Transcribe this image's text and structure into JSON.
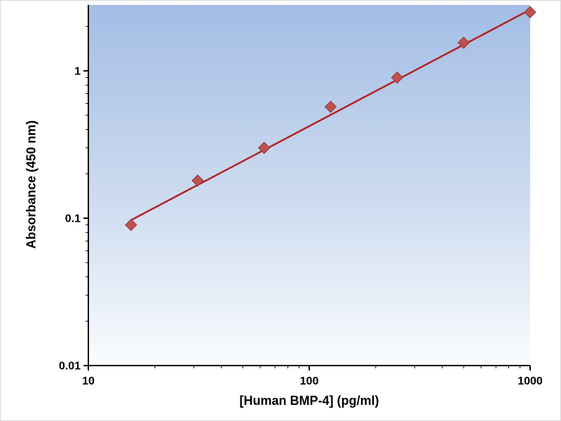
{
  "chart_data": {
    "type": "scatter",
    "title": "",
    "xlabel": "[Human BMP-4] (pg/ml)",
    "ylabel": "Absorbance (450 nm)",
    "x_scale": "log",
    "y_scale": "log",
    "xlim": [
      10,
      1000
    ],
    "ylim": [
      0.01,
      2.8
    ],
    "grid": false,
    "legend": "none",
    "x_ticks": {
      "values": [
        10,
        100,
        1000
      ],
      "labels": [
        "10",
        "100",
        "1000"
      ]
    },
    "y_ticks": {
      "values": [
        0.01,
        0.1,
        1
      ],
      "labels": [
        "0.01",
        "0.1",
        "1"
      ]
    },
    "series": [
      {
        "name": "standard-points",
        "type": "scatter",
        "marker": "diamond",
        "color": "#c0504d",
        "edge_color": "#8c3836",
        "x": [
          15.6,
          31.25,
          62.5,
          125,
          250,
          500,
          1000
        ],
        "y": [
          0.09,
          0.18,
          0.3,
          0.57,
          0.9,
          1.55,
          2.5
        ]
      },
      {
        "name": "fit-line",
        "type": "line",
        "color": "#b22222",
        "width": 2.5,
        "x": [
          15.6,
          1000
        ],
        "y": [
          0.097,
          2.6
        ]
      }
    ],
    "colors": {
      "plot_bg_top": "#a3bde4",
      "plot_bg_mid": "#cedcf0",
      "plot_bg_bottom": "#fafcfe",
      "axis": "#000000",
      "text": "#000000"
    }
  }
}
